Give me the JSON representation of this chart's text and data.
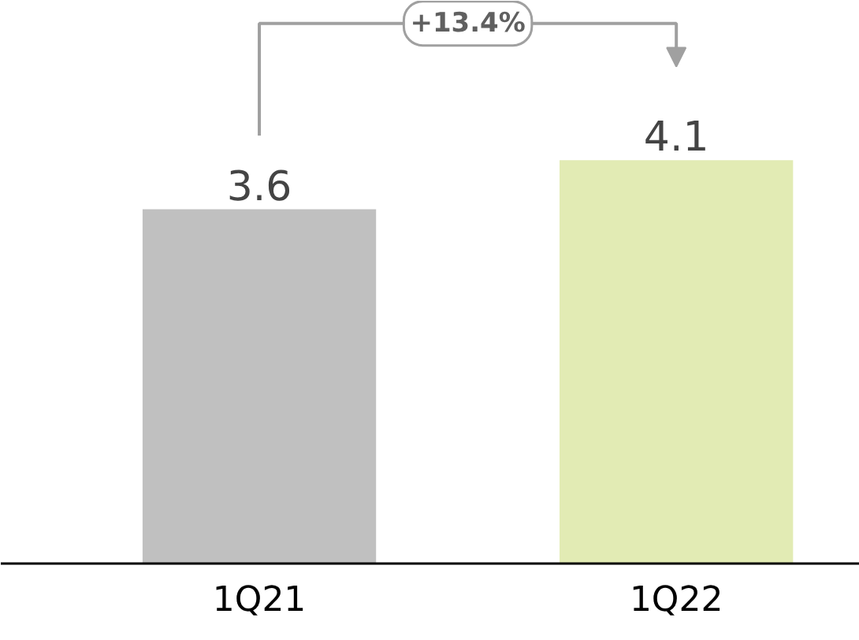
{
  "chart_data": {
    "type": "bar",
    "categories": [
      "1Q21",
      "1Q22"
    ],
    "values": [
      3.6,
      4.1
    ],
    "colors": [
      "#c0c0c0",
      "#e2ebb4"
    ],
    "data_labels": true,
    "grid": false,
    "tick_labels": "x",
    "annotations": [
      "+13.4%"
    ]
  }
}
